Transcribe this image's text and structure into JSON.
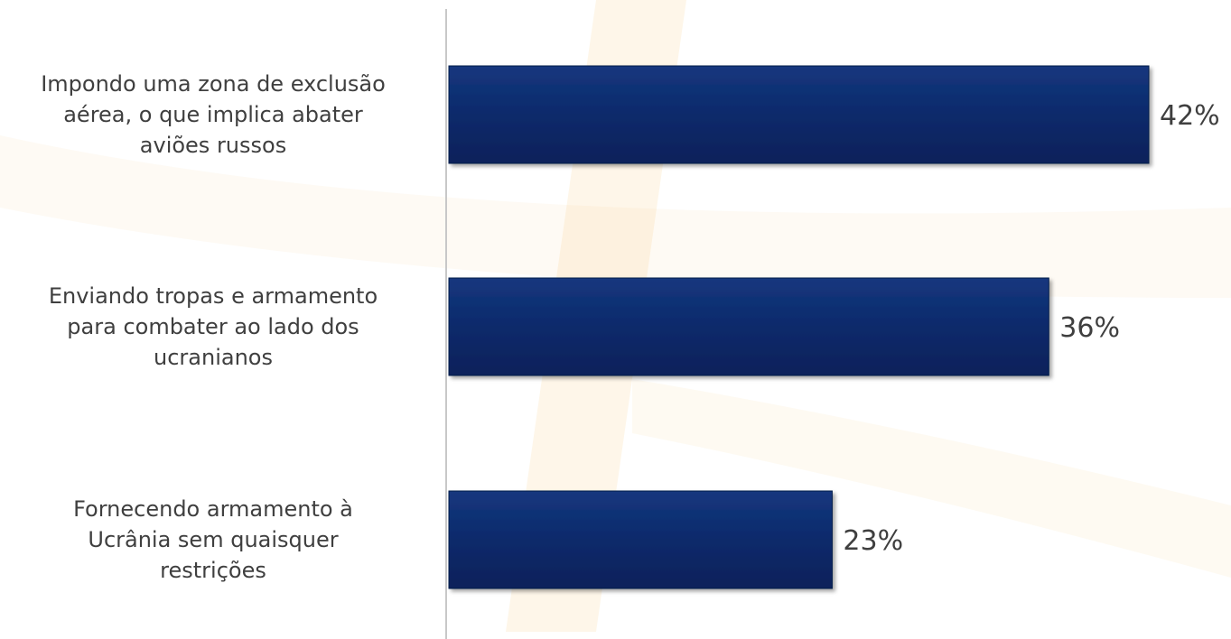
{
  "chart_data": {
    "type": "bar",
    "orientation": "horizontal",
    "categories": [
      "Impondo uma zona de exclusão aérea, o que implica abater aviões russos",
      "Enviando tropas e armamento para combater ao lado dos ucranianos",
      "Fornecendo armamento à Ucrânia sem quaisquer restrições"
    ],
    "category_lines": [
      [
        "Impondo uma zona de exclusão",
        "aérea, o que implica abater",
        "aviões russos"
      ],
      [
        "Enviando tropas e armamento",
        "para combater ao lado dos",
        "ucranianos"
      ],
      [
        "Fornecendo armamento à",
        "Ucrânia sem quaisquer",
        "restrições"
      ]
    ],
    "values": [
      42,
      36,
      23
    ],
    "value_labels": [
      "42%",
      "36%",
      "23%"
    ],
    "xlim": [
      0,
      42
    ],
    "grid": false,
    "legend": "none",
    "title": "",
    "xlabel": "",
    "ylabel": ""
  },
  "colors": {
    "bar": "#0a2a6b",
    "bar_edge": "#061c4a",
    "axis": "#c8c8c8",
    "text": "#3f3f3f",
    "watermark": "#f5a623"
  }
}
